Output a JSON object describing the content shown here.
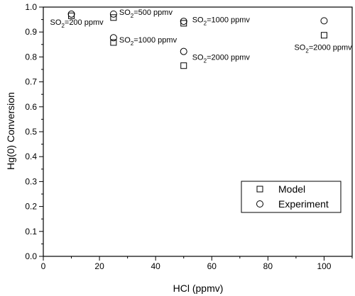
{
  "chart_data": {
    "type": "scatter",
    "xlabel": "HCl (ppmv)",
    "ylabel": "Hg(0) Conversion",
    "xlim": [
      0,
      110
    ],
    "ylim": [
      0,
      1.0
    ],
    "xticks": [
      0,
      20,
      40,
      60,
      80,
      100
    ],
    "yticks": [
      0.0,
      0.1,
      0.2,
      0.3,
      0.4,
      0.5,
      0.6,
      0.7,
      0.8,
      0.9,
      1.0
    ],
    "ytick_labels": [
      "0.0",
      "0.1",
      "0.2",
      "0.3",
      "0.4",
      "0.5",
      "0.6",
      "0.7",
      "0.8",
      "0.9",
      "1.0"
    ],
    "grid": false,
    "legend_position": "lower-right",
    "series": [
      {
        "name": "Model",
        "marker": "square",
        "points": [
          {
            "x": 10,
            "y": 0.965
          },
          {
            "x": 25,
            "y": 0.958
          },
          {
            "x": 25,
            "y": 0.858
          },
          {
            "x": 50,
            "y": 0.935
          },
          {
            "x": 50,
            "y": 0.765
          },
          {
            "x": 100,
            "y": 0.887
          }
        ]
      },
      {
        "name": "Experiment",
        "marker": "circle",
        "points": [
          {
            "x": 10,
            "y": 0.972
          },
          {
            "x": 25,
            "y": 0.972
          },
          {
            "x": 25,
            "y": 0.877
          },
          {
            "x": 50,
            "y": 0.943
          },
          {
            "x": 50,
            "y": 0.822
          },
          {
            "x": 100,
            "y": 0.945
          }
        ]
      }
    ],
    "annotations": [
      {
        "pre": "SO",
        "sub": "2",
        "post": "=200 ppmv",
        "x": 10,
        "y": 0.94
      },
      {
        "pre": "SO",
        "sub": "2",
        "post": "=500 ppmv",
        "x": 25,
        "y": 0.98
      },
      {
        "pre": "SO",
        "sub": "2",
        "post": "=1000 ppmv",
        "x": 25,
        "y": 0.87
      },
      {
        "pre": "SO",
        "sub": "2",
        "post": "=1000 ppmv",
        "x": 50,
        "y": 0.95
      },
      {
        "pre": "SO",
        "sub": "2",
        "post": "=2000 ppmv",
        "x": 50,
        "y": 0.8
      },
      {
        "pre": "SO",
        "sub": "2",
        "post": "=2000 ppmv",
        "x": 100,
        "y": 0.84
      }
    ]
  }
}
